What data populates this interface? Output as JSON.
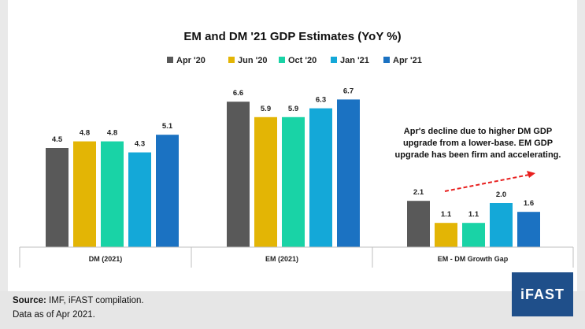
{
  "chart_data": {
    "type": "bar",
    "title": "EM and DM '21 GDP Estimates (YoY %)",
    "categories": [
      "DM (2021)",
      "EM (2021)",
      "EM - DM Growth Gap"
    ],
    "series": [
      {
        "name": "Apr '20",
        "values": [
          4.5,
          6.6,
          2.1
        ],
        "color": "#595959"
      },
      {
        "name": "Jun '20",
        "values": [
          4.8,
          5.9,
          1.1
        ],
        "color": "#e3b505"
      },
      {
        "name": "Oct '20",
        "values": [
          4.8,
          5.9,
          1.1
        ],
        "color": "#19d3a6"
      },
      {
        "name": "Jan '21",
        "values": [
          4.3,
          6.3,
          2.0
        ],
        "color": "#14a8d8"
      },
      {
        "name": "Apr '21",
        "values": [
          5.1,
          6.7,
          1.6
        ],
        "color": "#1b72c2"
      }
    ],
    "ylim": [
      0,
      7.5
    ],
    "grid": false,
    "legend": "top",
    "annotation": {
      "lines": [
        "Apr's decline due to higher DM GDP",
        "upgrade from a lower-base. EM GDP",
        "upgrade has been firm and accelerating."
      ],
      "arrow_color": "#e8201f"
    }
  },
  "footer": {
    "source_label": "Source:",
    "source_text": " IMF, iFAST compilation.",
    "data_note": "Data as of Apr 2021."
  },
  "logo": {
    "text": "iFAST"
  }
}
